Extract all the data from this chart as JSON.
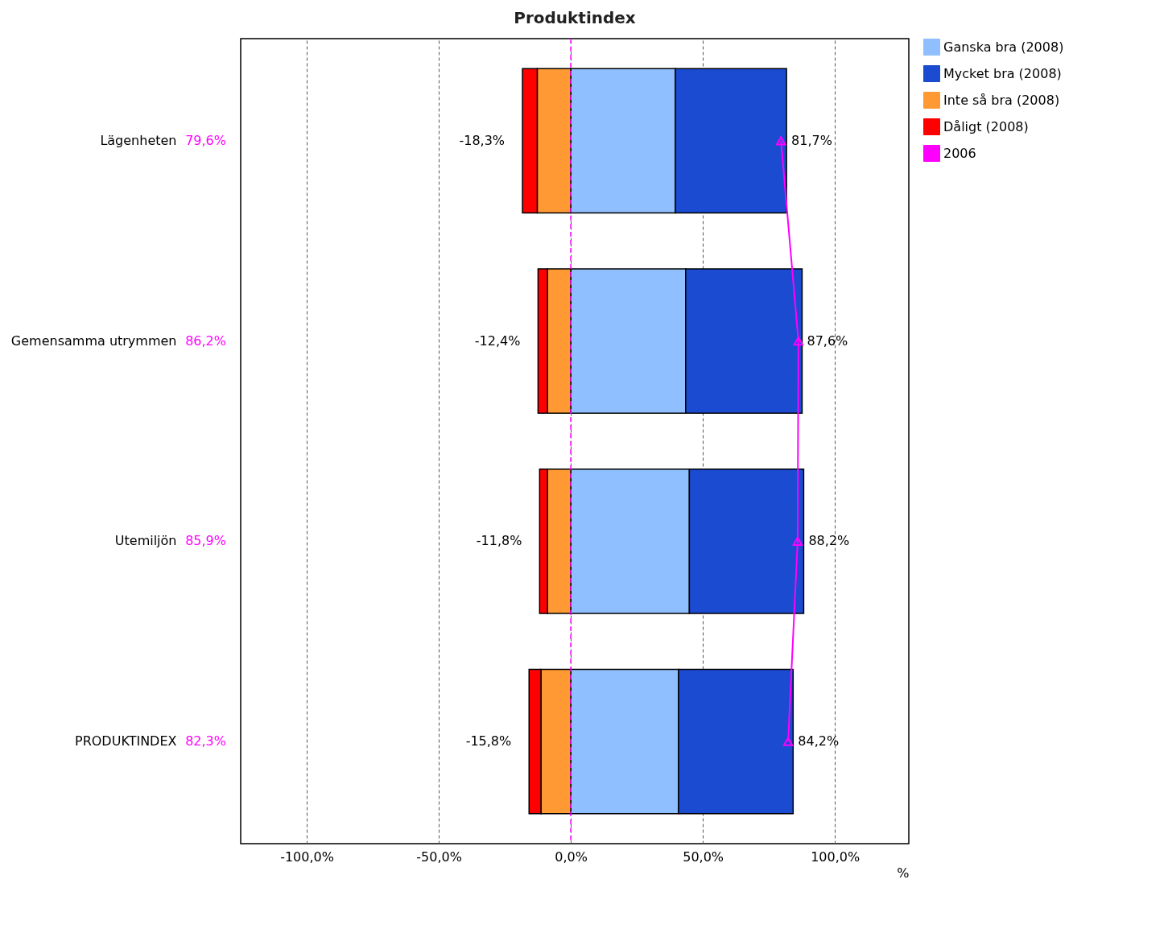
{
  "chart_data": {
    "type": "bar",
    "orientation": "horizontal",
    "stacked": true,
    "title": "Produktindex",
    "xlabel": "%",
    "categories": [
      "Lägenheten",
      "Gemensamma utrymmen",
      "Utemiljön",
      "PRODUKTINDEX"
    ],
    "series": [
      {
        "name": "Ganska bra (2008)",
        "color": "#8fbfff",
        "values": [
          39.6,
          43.5,
          44.9,
          40.8
        ]
      },
      {
        "name": "Mycket bra (2008)",
        "color": "#1a4bd1",
        "values": [
          42.1,
          44.1,
          43.3,
          43.4
        ]
      },
      {
        "name": "Inte så bra (2008)",
        "color": "#ff9933",
        "values": [
          -12.7,
          -8.8,
          -8.8,
          -11.3
        ]
      },
      {
        "name": "Dåligt (2008)",
        "color": "#ff0000",
        "values": [
          -5.6,
          -3.6,
          -3.0,
          -4.5
        ]
      },
      {
        "name": "2006",
        "type": "line",
        "color": "#ff00ff",
        "marker": "triangle",
        "values": [
          79.6,
          86.2,
          85.9,
          82.3
        ],
        "value_labels": [
          "79,6%",
          "86,2%",
          "85,9%",
          "82,3%"
        ]
      }
    ],
    "xlim": [
      -125,
      128
    ],
    "xticks": [
      {
        "value": -100,
        "label": "-100,0%"
      },
      {
        "value": -50,
        "label": "-50,0%"
      },
      {
        "value": 0,
        "label": "0,0%"
      },
      {
        "value": 50,
        "label": "50,0%"
      },
      {
        "value": 100,
        "label": "100,0%"
      }
    ],
    "grid": "x",
    "legend": "top right",
    "ref_lines": [
      {
        "axis": "x",
        "value": 0,
        "color": "#ff00ff",
        "line_style": "dashed"
      }
    ],
    "annotations": [
      {
        "text": "81,7%",
        "x": 81.7,
        "y": "Lägenheten"
      },
      {
        "text": "87,6%",
        "x": 87.6,
        "y": "Gemensamma utrymmen"
      },
      {
        "text": "88,2%",
        "x": 88.2,
        "y": "Utemiljön"
      },
      {
        "text": "84,2%",
        "x": 84.2,
        "y": "PRODUKTINDEX"
      },
      {
        "text": "-18,3%",
        "x": -18.3,
        "y": "Lägenheten"
      },
      {
        "text": "-12,4%",
        "x": -12.4,
        "y": "Gemensamma utrymmen"
      },
      {
        "text": "-11,8%",
        "x": -11.8,
        "y": "Utemiljön"
      },
      {
        "text": "-15,8%",
        "x": -15.8,
        "y": "PRODUKTINDEX"
      }
    ]
  }
}
